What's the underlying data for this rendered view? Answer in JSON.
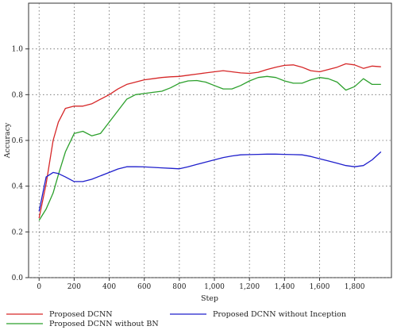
{
  "chart_data": {
    "type": "line",
    "xlabel": "Step",
    "ylabel": "Accuracy",
    "xlim": [
      -60,
      2010
    ],
    "ylim": [
      0.0,
      1.2
    ],
    "xticks": [
      0,
      200,
      400,
      600,
      800,
      1000,
      1200,
      1400,
      1600,
      1800
    ],
    "xtick_labels": [
      "0",
      "200",
      "400",
      "600",
      "800",
      "1,000",
      "1,200",
      "1,400",
      "1,600",
      "1,800"
    ],
    "yticks": [
      0.0,
      0.2,
      0.4,
      0.6,
      0.8,
      1.0
    ],
    "ytick_labels": [
      "0.0",
      "0.2",
      "0.4",
      "0.6",
      "0.8",
      "1.0"
    ],
    "grid": true,
    "legend_position": "bottom",
    "series": [
      {
        "name": "Proposed DCNN",
        "color": "#d62728",
        "x": [
          0,
          40,
          80,
          110,
          150,
          200,
          250,
          300,
          350,
          400,
          450,
          500,
          550,
          600,
          650,
          700,
          750,
          800,
          850,
          900,
          950,
          1000,
          1050,
          1100,
          1150,
          1200,
          1250,
          1300,
          1350,
          1400,
          1450,
          1500,
          1550,
          1600,
          1650,
          1700,
          1750,
          1800,
          1850,
          1900,
          1950
        ],
        "y": [
          0.26,
          0.41,
          0.6,
          0.68,
          0.74,
          0.75,
          0.75,
          0.76,
          0.78,
          0.8,
          0.825,
          0.845,
          0.855,
          0.865,
          0.87,
          0.875,
          0.878,
          0.88,
          0.885,
          0.89,
          0.895,
          0.9,
          0.905,
          0.9,
          0.895,
          0.893,
          0.898,
          0.91,
          0.92,
          0.928,
          0.93,
          0.92,
          0.905,
          0.9,
          0.91,
          0.92,
          0.935,
          0.93,
          0.915,
          0.925,
          0.922
        ]
      },
      {
        "name": "Proposed DCNN without BN",
        "color": "#2ca02c",
        "x": [
          0,
          40,
          80,
          110,
          150,
          200,
          250,
          300,
          350,
          400,
          450,
          500,
          550,
          600,
          650,
          700,
          750,
          800,
          850,
          900,
          950,
          1000,
          1050,
          1100,
          1150,
          1200,
          1250,
          1300,
          1350,
          1400,
          1450,
          1500,
          1550,
          1600,
          1650,
          1700,
          1750,
          1800,
          1850,
          1900,
          1950
        ],
        "y": [
          0.25,
          0.3,
          0.37,
          0.45,
          0.55,
          0.63,
          0.64,
          0.62,
          0.63,
          0.68,
          0.73,
          0.78,
          0.8,
          0.805,
          0.81,
          0.815,
          0.83,
          0.85,
          0.86,
          0.862,
          0.855,
          0.84,
          0.825,
          0.825,
          0.84,
          0.86,
          0.875,
          0.88,
          0.875,
          0.86,
          0.85,
          0.85,
          0.865,
          0.875,
          0.87,
          0.855,
          0.82,
          0.835,
          0.87,
          0.845,
          0.845
        ]
      },
      {
        "name": "Proposed DCNN without Inception",
        "color": "#1f1fcc",
        "x": [
          0,
          40,
          80,
          110,
          150,
          200,
          250,
          300,
          350,
          400,
          450,
          500,
          550,
          600,
          650,
          700,
          750,
          800,
          850,
          900,
          950,
          1000,
          1050,
          1100,
          1150,
          1200,
          1250,
          1300,
          1350,
          1400,
          1450,
          1500,
          1550,
          1600,
          1650,
          1700,
          1750,
          1800,
          1850,
          1900,
          1950
        ],
        "y": [
          0.29,
          0.44,
          0.46,
          0.455,
          0.44,
          0.42,
          0.42,
          0.43,
          0.445,
          0.46,
          0.475,
          0.485,
          0.485,
          0.484,
          0.482,
          0.48,
          0.478,
          0.476,
          0.485,
          0.495,
          0.505,
          0.515,
          0.525,
          0.532,
          0.537,
          0.538,
          0.539,
          0.54,
          0.54,
          0.539,
          0.538,
          0.537,
          0.53,
          0.52,
          0.51,
          0.5,
          0.49,
          0.485,
          0.49,
          0.515,
          0.55
        ]
      }
    ]
  }
}
